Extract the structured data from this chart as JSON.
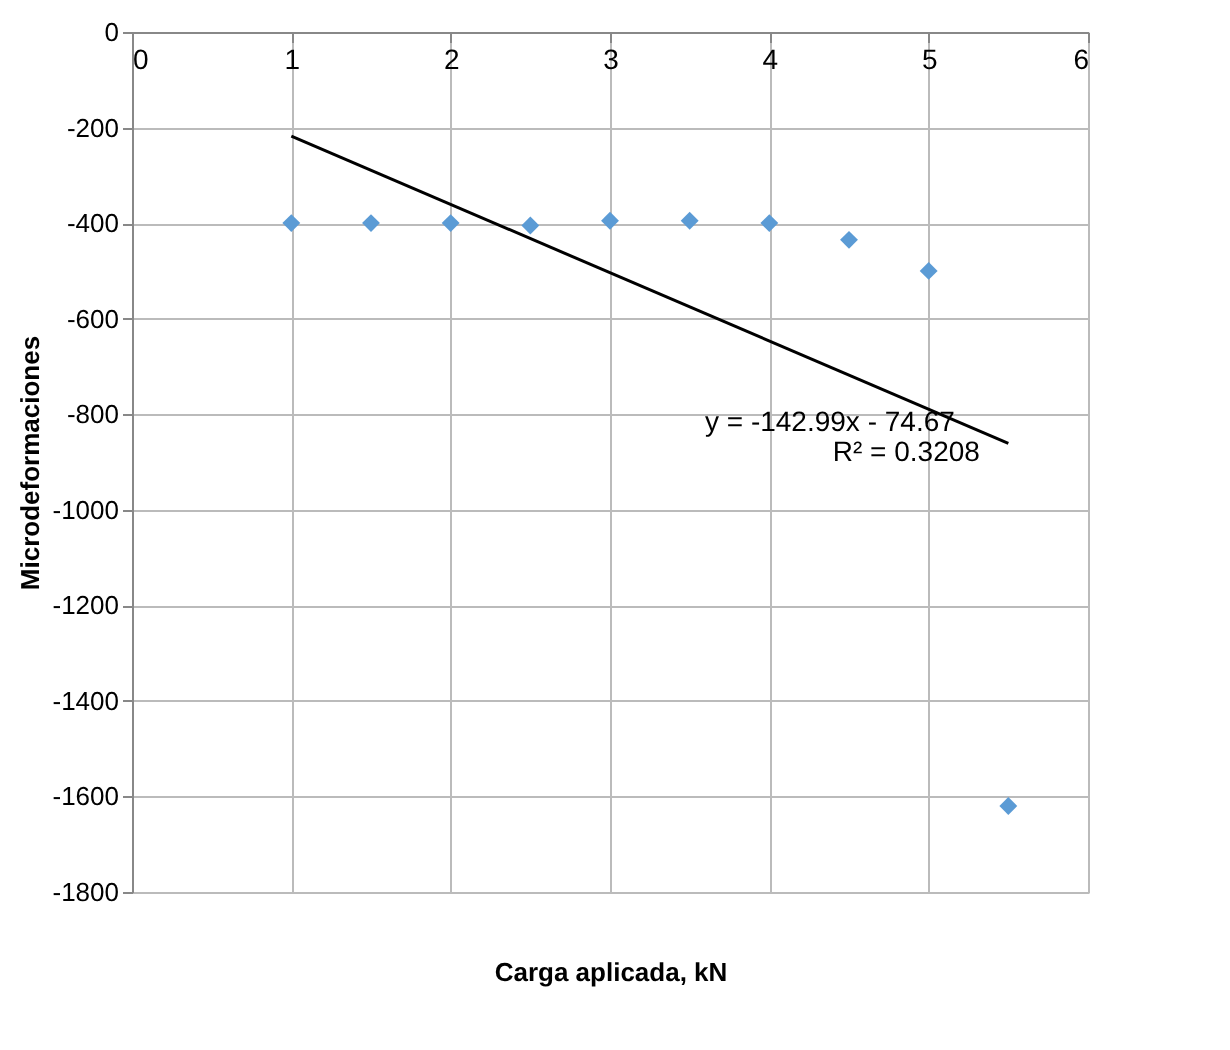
{
  "chart_data": {
    "type": "scatter",
    "xlabel": "Carga aplicada, kN",
    "ylabel": "Microdeformaciones",
    "xlim": [
      0,
      6
    ],
    "xticks": [
      0,
      1,
      2,
      3,
      4,
      5,
      6
    ],
    "ylim": [
      -1800,
      0
    ],
    "yticks": [
      -1800,
      -1600,
      -1400,
      -1200,
      -1000,
      -800,
      -600,
      -400,
      -200,
      0
    ],
    "grid": true,
    "series": [
      {
        "color": "#5b9bd5",
        "marker": "diamond",
        "x": [
          1,
          1.5,
          2,
          2.5,
          3,
          3.5,
          4,
          4.5,
          5,
          5.5
        ],
        "values": [
          -400,
          -400,
          -400,
          -405,
          -395,
          -395,
          -400,
          -435,
          -500,
          -1620
        ]
      },
      {
        "type": "line",
        "color": "#000000",
        "x": [
          1,
          5.5
        ],
        "values": [
          -218,
          -861
        ]
      }
    ],
    "annotations": [
      "y = -142.99x - 74.67",
      "R² = 0.3208"
    ]
  }
}
